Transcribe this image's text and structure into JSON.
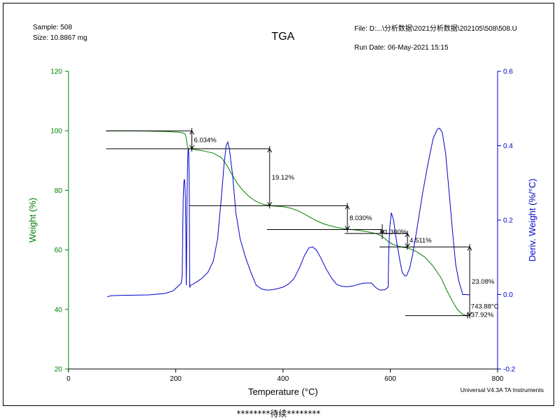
{
  "header": {
    "sample_line": "Sample: 508",
    "size_line": "Size:  10.8867 mg",
    "file_line": "File: D:...\\分析数据\\2021分析数据\\202105\\508\\508.U",
    "run_date_line": "Run Date: 06-May-2021 15:15"
  },
  "footer_text": "********待续********",
  "colors": {
    "weight": "#008000",
    "deriv": "#0000cc",
    "annotation": "#000000",
    "frame": "#000000"
  },
  "chart_data": {
    "type": "line",
    "title": "TGA",
    "xlabel": "Temperature (°C)",
    "ylabel": "Weight (%)",
    "y2label": "Deriv. Weight (%/°C)",
    "xlim": [
      0,
      800
    ],
    "ylim": [
      20,
      120
    ],
    "y2lim": [
      -0.2,
      0.6
    ],
    "x_ticks": [
      "0",
      "200",
      "400",
      "600",
      "800"
    ],
    "y_ticks": [
      "20",
      "40",
      "60",
      "80",
      "100",
      "120"
    ],
    "y2_ticks": [
      "-0.2",
      "0.0",
      "0.2",
      "0.4",
      "0.6"
    ],
    "instrument_label": "Universal V4.3A TA Instruments",
    "series": [
      {
        "axis": "left",
        "points": [
          [
            70,
            100.0
          ],
          [
            130,
            100.0
          ],
          [
            180,
            99.8
          ],
          [
            205,
            99.5
          ],
          [
            214,
            99.3
          ],
          [
            218,
            98.8
          ],
          [
            220,
            97.0
          ],
          [
            222,
            94.5
          ],
          [
            224,
            94.0
          ],
          [
            232,
            93.8
          ],
          [
            250,
            93.3
          ],
          [
            270,
            92.5
          ],
          [
            285,
            91.0
          ],
          [
            295,
            88.5
          ],
          [
            305,
            85.2
          ],
          [
            315,
            82.3
          ],
          [
            325,
            80.0
          ],
          [
            335,
            78.2
          ],
          [
            345,
            76.8
          ],
          [
            355,
            75.8
          ],
          [
            365,
            75.2
          ],
          [
            380,
            74.8
          ],
          [
            400,
            74.5
          ],
          [
            415,
            74.0
          ],
          [
            430,
            73.0
          ],
          [
            445,
            71.5
          ],
          [
            460,
            70.0
          ],
          [
            475,
            68.8
          ],
          [
            490,
            68.0
          ],
          [
            505,
            67.4
          ],
          [
            520,
            67.0
          ],
          [
            540,
            66.6
          ],
          [
            560,
            66.0
          ],
          [
            575,
            65.4
          ],
          [
            585,
            64.5
          ],
          [
            595,
            63.0
          ],
          [
            605,
            61.8
          ],
          [
            620,
            61.0
          ],
          [
            635,
            60.5
          ],
          [
            650,
            59.3
          ],
          [
            665,
            57.5
          ],
          [
            680,
            54.5
          ],
          [
            695,
            50.5
          ],
          [
            705,
            46.5
          ],
          [
            715,
            43.0
          ],
          [
            725,
            40.0
          ],
          [
            735,
            38.3
          ],
          [
            745,
            37.9
          ],
          [
            748,
            37.9
          ]
        ]
      },
      {
        "axis": "right",
        "points": [
          [
            72,
            -0.006
          ],
          [
            80,
            -0.003
          ],
          [
            100,
            -0.002
          ],
          [
            150,
            -0.001
          ],
          [
            180,
            0.003
          ],
          [
            195,
            0.01
          ],
          [
            206,
            0.025
          ],
          [
            210,
            0.03
          ],
          [
            212,
            0.05
          ],
          [
            213,
            0.17
          ],
          [
            214,
            0.26
          ],
          [
            215,
            0.3
          ],
          [
            216,
            0.31
          ],
          [
            217,
            0.3
          ],
          [
            218,
            0.26
          ],
          [
            219,
            0.15
          ],
          [
            219.5,
            0.025
          ],
          [
            220,
            0.08
          ],
          [
            221,
            0.25
          ],
          [
            222,
            0.35
          ],
          [
            223,
            0.39
          ],
          [
            224,
            0.39
          ],
          [
            225,
            0.32
          ],
          [
            226,
            0.02
          ],
          [
            228,
            0.025
          ],
          [
            232,
            0.028
          ],
          [
            240,
            0.035
          ],
          [
            250,
            0.045
          ],
          [
            260,
            0.06
          ],
          [
            270,
            0.09
          ],
          [
            278,
            0.15
          ],
          [
            285,
            0.26
          ],
          [
            290,
            0.35
          ],
          [
            294,
            0.4
          ],
          [
            297,
            0.41
          ],
          [
            300,
            0.39
          ],
          [
            306,
            0.32
          ],
          [
            312,
            0.22
          ],
          [
            320,
            0.15
          ],
          [
            330,
            0.1
          ],
          [
            340,
            0.06
          ],
          [
            350,
            0.025
          ],
          [
            360,
            0.015
          ],
          [
            370,
            0.012
          ],
          [
            380,
            0.013
          ],
          [
            390,
            0.016
          ],
          [
            400,
            0.02
          ],
          [
            410,
            0.028
          ],
          [
            420,
            0.042
          ],
          [
            430,
            0.07
          ],
          [
            440,
            0.105
          ],
          [
            448,
            0.125
          ],
          [
            455,
            0.128
          ],
          [
            462,
            0.12
          ],
          [
            470,
            0.1
          ],
          [
            480,
            0.07
          ],
          [
            490,
            0.045
          ],
          [
            500,
            0.027
          ],
          [
            510,
            0.022
          ],
          [
            520,
            0.021
          ],
          [
            530,
            0.023
          ],
          [
            540,
            0.027
          ],
          [
            548,
            0.03
          ],
          [
            555,
            0.031
          ],
          [
            565,
            0.031
          ],
          [
            572,
            0.02
          ],
          [
            580,
            0.012
          ],
          [
            590,
            0.013
          ],
          [
            596,
            0.02
          ],
          [
            597,
            0.11
          ],
          [
            599,
            0.18
          ],
          [
            602,
            0.22
          ],
          [
            606,
            0.2
          ],
          [
            612,
            0.14
          ],
          [
            618,
            0.09
          ],
          [
            622,
            0.06
          ],
          [
            627,
            0.05
          ],
          [
            630,
            0.05
          ],
          [
            636,
            0.07
          ],
          [
            642,
            0.11
          ],
          [
            650,
            0.18
          ],
          [
            660,
            0.27
          ],
          [
            670,
            0.35
          ],
          [
            680,
            0.42
          ],
          [
            688,
            0.445
          ],
          [
            692,
            0.447
          ],
          [
            697,
            0.435
          ],
          [
            703,
            0.38
          ],
          [
            710,
            0.27
          ],
          [
            716,
            0.17
          ],
          [
            722,
            0.08
          ],
          [
            728,
            0.035
          ],
          [
            735,
            0.0
          ],
          [
            742,
            0.0
          ],
          [
            748,
            -0.001
          ]
        ]
      }
    ],
    "annotations": [
      {
        "label": "6.034%",
        "kind": "step",
        "x_start": 70,
        "x_end": 230,
        "y_top": 100.0,
        "y_bottom": 93.966
      },
      {
        "label": "19.12%",
        "kind": "step",
        "x_start": 226,
        "x_end": 375,
        "y_top": 93.966,
        "y_bottom": 74.85
      },
      {
        "label": "8.030%",
        "kind": "step",
        "x_start": 370,
        "x_end": 520,
        "y_top": 74.85,
        "y_bottom": 66.82
      },
      {
        "label": "1.300%",
        "kind": "step",
        "x_start": 515,
        "x_end": 585,
        "y_top": 66.82,
        "y_bottom": 65.52
      },
      {
        "label": "4.511%",
        "kind": "step",
        "x_start": 580,
        "x_end": 632,
        "y_top": 65.52,
        "y_bottom": 61.0
      },
      {
        "label": "23.08%",
        "kind": "step",
        "x_start": 628,
        "x_end": 748,
        "y_top": 61.0,
        "y_bottom": 37.92
      },
      {
        "label_temp": "743.88°C",
        "label_residue": "37.92%",
        "kind": "residue",
        "x": 743.88,
        "y": 37.92
      }
    ]
  }
}
